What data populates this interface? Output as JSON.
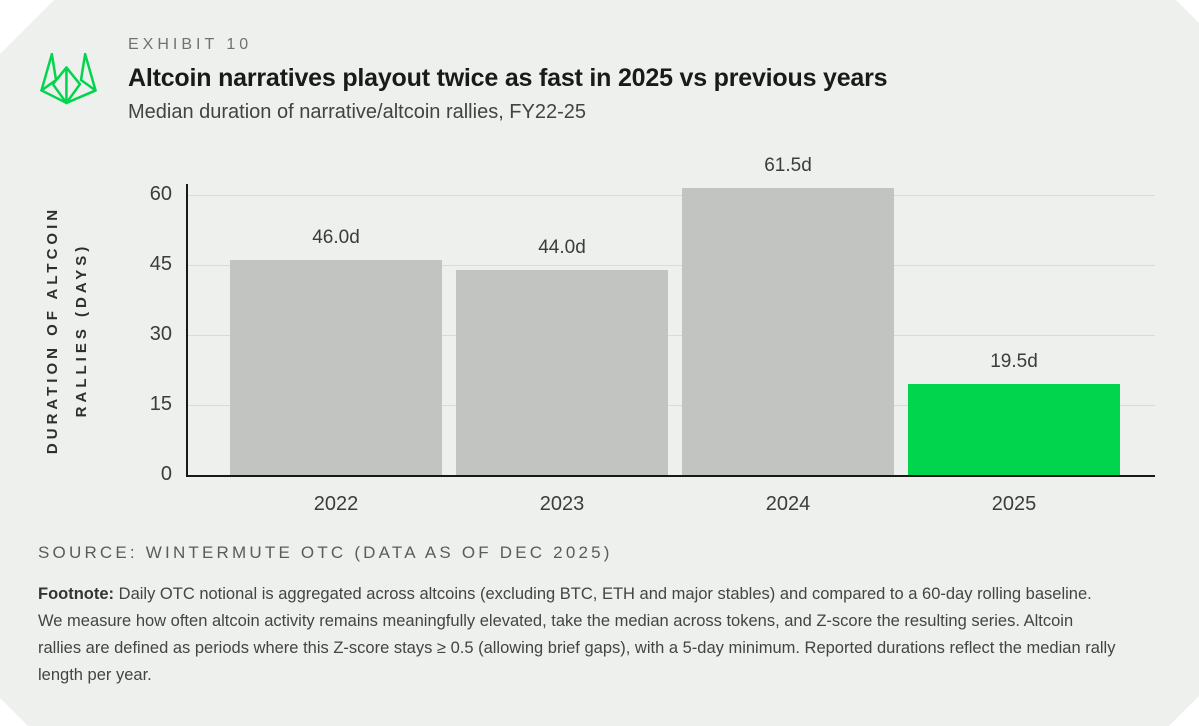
{
  "colors": {
    "card_background": "#eef0ee",
    "accent_green": "#00d54d",
    "bar_gray": "#c2c4c2",
    "gridline": "#d9dbd8",
    "axis": "#191919"
  },
  "header": {
    "logo_icon": "wintermute-logo",
    "exhibit_label": "EXHIBIT 10",
    "title": "Altcoin narratives playout twice as fast in 2025 vs previous years",
    "subtitle": "Median duration of narrative/altcoin rallies, FY22-25"
  },
  "chart_data": {
    "type": "bar",
    "title": "Median duration of narrative/altcoin rallies, FY22-25",
    "categories": [
      "2022",
      "2023",
      "2024",
      "2025"
    ],
    "values": [
      46.0,
      44.0,
      61.5,
      19.5
    ],
    "value_labels": [
      "46.0d",
      "44.0d",
      "61.5d",
      "19.5d"
    ],
    "bar_colors": [
      "#c2c4c2",
      "#c2c4c2",
      "#c2c4c2",
      "#00d54d"
    ],
    "ylabel_lines": [
      "DURATION OF ALTCOIN",
      "RALLIES (DAYS)"
    ],
    "yticks": [
      0,
      15,
      30,
      45,
      60
    ],
    "ylim": [
      0,
      62
    ],
    "grid": "horizontal",
    "legend": "none"
  },
  "source": "SOURCE: WINTERMUTE OTC (DATA AS OF DEC 2025)",
  "footnote": {
    "label": "Footnote:",
    "text": "Daily OTC notional is aggregated across altcoins (excluding BTC, ETH and major stables) and compared to a 60-day rolling baseline. We measure how often altcoin activity remains meaningfully elevated, take the median across tokens, and Z-score the resulting series. Altcoin rallies are defined as periods where this Z-score stays ≥ 0.5 (allowing brief gaps), with a 5-day minimum. Reported durations reflect the median rally length per year."
  }
}
